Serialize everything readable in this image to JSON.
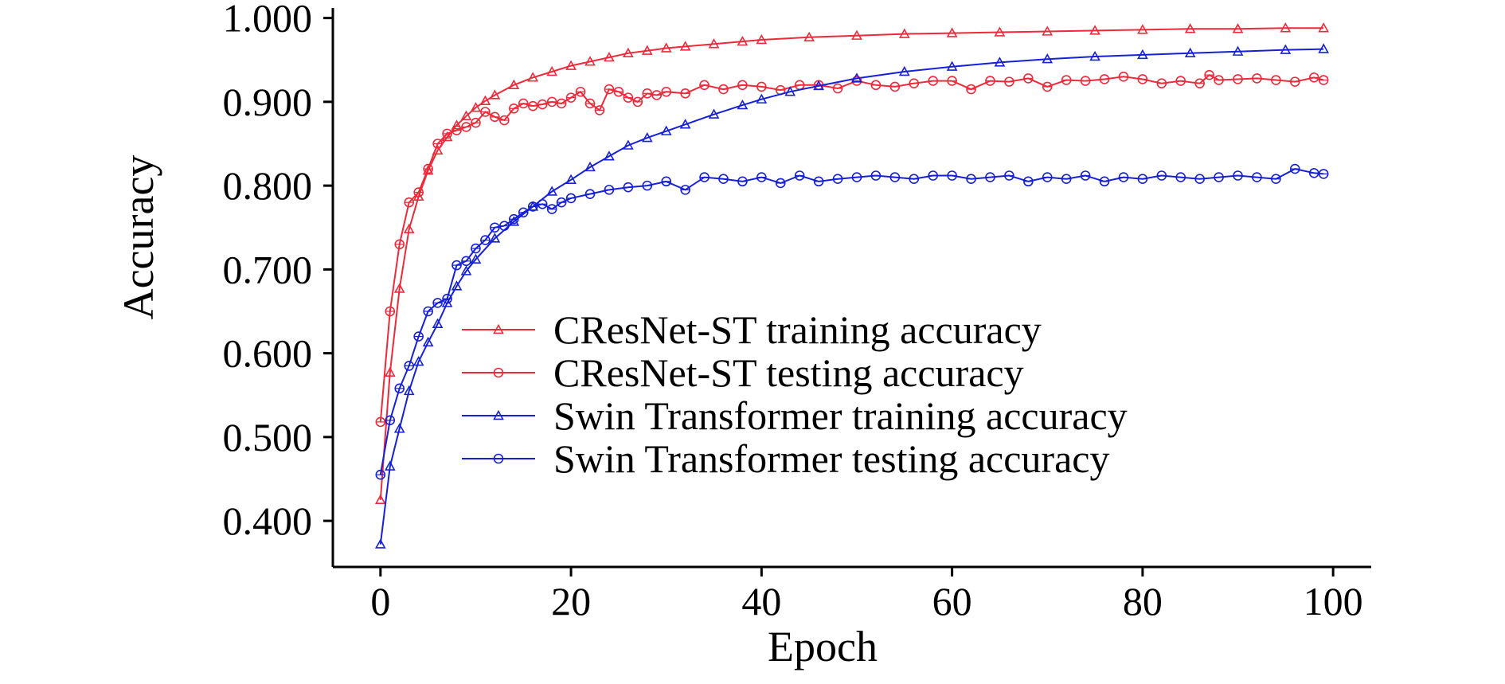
{
  "chart_data": {
    "type": "line",
    "xlabel": "Epoch",
    "ylabel": "Accuracy",
    "xlim": [
      -5,
      104
    ],
    "ylim": [
      0.345,
      1.012
    ],
    "xticks": [
      0,
      20,
      40,
      60,
      80,
      100
    ],
    "xtick_labels": [
      "0",
      "20",
      "40",
      "60",
      "80",
      "100"
    ],
    "yticks": [
      0.4,
      0.5,
      0.6,
      0.7,
      0.8,
      0.9,
      1.0
    ],
    "ytick_labels": [
      "0.400",
      "0.500",
      "0.600",
      "0.700",
      "0.800",
      "0.900",
      "1.000"
    ],
    "grid": false,
    "legend_position": "lower-center",
    "series": [
      {
        "name": "CResNet-ST training accuracy",
        "color": "#ee2a3a",
        "marker": "triangle",
        "x": [
          0,
          1,
          2,
          3,
          4,
          5,
          6,
          7,
          8,
          9,
          10,
          11,
          12,
          14,
          16,
          18,
          20,
          22,
          24,
          26,
          28,
          30,
          32,
          35,
          38,
          40,
          45,
          50,
          55,
          60,
          65,
          70,
          75,
          80,
          85,
          90,
          95,
          99
        ],
        "y": [
          0.425,
          0.577,
          0.677,
          0.748,
          0.787,
          0.818,
          0.842,
          0.858,
          0.872,
          0.883,
          0.893,
          0.901,
          0.908,
          0.92,
          0.929,
          0.936,
          0.943,
          0.948,
          0.953,
          0.958,
          0.961,
          0.964,
          0.966,
          0.969,
          0.972,
          0.974,
          0.977,
          0.979,
          0.981,
          0.982,
          0.983,
          0.984,
          0.985,
          0.986,
          0.987,
          0.987,
          0.988,
          0.988
        ]
      },
      {
        "name": "CResNet-ST testing accuracy",
        "color": "#ee2a3a",
        "marker": "circle",
        "x": [
          0,
          1,
          2,
          3,
          4,
          5,
          6,
          7,
          8,
          9,
          10,
          11,
          12,
          13,
          14,
          15,
          16,
          17,
          18,
          19,
          20,
          21,
          22,
          23,
          24,
          25,
          26,
          27,
          28,
          29,
          30,
          32,
          34,
          36,
          38,
          40,
          42,
          44,
          46,
          48,
          50,
          52,
          54,
          56,
          58,
          60,
          62,
          64,
          66,
          68,
          70,
          72,
          74,
          76,
          78,
          80,
          82,
          84,
          86,
          87,
          88,
          90,
          92,
          94,
          96,
          98,
          99
        ],
        "y": [
          0.518,
          0.65,
          0.73,
          0.78,
          0.792,
          0.82,
          0.85,
          0.862,
          0.866,
          0.87,
          0.875,
          0.888,
          0.882,
          0.878,
          0.892,
          0.898,
          0.895,
          0.897,
          0.9,
          0.898,
          0.905,
          0.912,
          0.898,
          0.89,
          0.915,
          0.912,
          0.905,
          0.9,
          0.91,
          0.908,
          0.912,
          0.91,
          0.92,
          0.915,
          0.92,
          0.918,
          0.914,
          0.92,
          0.92,
          0.916,
          0.925,
          0.92,
          0.918,
          0.922,
          0.925,
          0.925,
          0.915,
          0.925,
          0.924,
          0.928,
          0.918,
          0.926,
          0.925,
          0.927,
          0.93,
          0.927,
          0.922,
          0.925,
          0.922,
          0.932,
          0.926,
          0.927,
          0.928,
          0.926,
          0.924,
          0.929,
          0.926
        ]
      },
      {
        "name": "Swin Transformer training accuracy",
        "color": "#1620d8",
        "marker": "triangle",
        "x": [
          0,
          1,
          2,
          3,
          4,
          5,
          6,
          7,
          8,
          9,
          10,
          12,
          14,
          16,
          18,
          20,
          22,
          24,
          26,
          28,
          30,
          32,
          35,
          38,
          40,
          43,
          46,
          50,
          55,
          60,
          65,
          70,
          75,
          80,
          85,
          90,
          95,
          99
        ],
        "y": [
          0.372,
          0.465,
          0.51,
          0.555,
          0.59,
          0.613,
          0.635,
          0.66,
          0.68,
          0.698,
          0.712,
          0.737,
          0.757,
          0.775,
          0.793,
          0.807,
          0.822,
          0.835,
          0.848,
          0.857,
          0.865,
          0.873,
          0.885,
          0.896,
          0.903,
          0.912,
          0.919,
          0.928,
          0.936,
          0.942,
          0.947,
          0.951,
          0.954,
          0.956,
          0.958,
          0.96,
          0.962,
          0.963
        ]
      },
      {
        "name": "Swin Transformer testing accuracy",
        "color": "#1620d8",
        "marker": "circle",
        "x": [
          0,
          1,
          2,
          3,
          4,
          5,
          6,
          7,
          8,
          9,
          10,
          11,
          12,
          13,
          14,
          15,
          16,
          17,
          18,
          19,
          20,
          22,
          24,
          26,
          28,
          30,
          32,
          34,
          36,
          38,
          40,
          42,
          44,
          46,
          48,
          50,
          52,
          54,
          56,
          58,
          60,
          62,
          64,
          66,
          68,
          70,
          72,
          74,
          76,
          78,
          80,
          82,
          84,
          86,
          88,
          90,
          92,
          94,
          96,
          98,
          99
        ],
        "y": [
          0.455,
          0.52,
          0.558,
          0.585,
          0.62,
          0.65,
          0.66,
          0.665,
          0.705,
          0.71,
          0.725,
          0.735,
          0.75,
          0.752,
          0.76,
          0.768,
          0.775,
          0.778,
          0.772,
          0.78,
          0.785,
          0.79,
          0.795,
          0.798,
          0.8,
          0.805,
          0.795,
          0.81,
          0.808,
          0.805,
          0.81,
          0.803,
          0.812,
          0.805,
          0.808,
          0.81,
          0.812,
          0.81,
          0.808,
          0.812,
          0.812,
          0.808,
          0.81,
          0.812,
          0.805,
          0.81,
          0.808,
          0.812,
          0.805,
          0.81,
          0.808,
          0.812,
          0.81,
          0.808,
          0.81,
          0.812,
          0.81,
          0.808,
          0.82,
          0.815,
          0.814
        ]
      }
    ]
  }
}
